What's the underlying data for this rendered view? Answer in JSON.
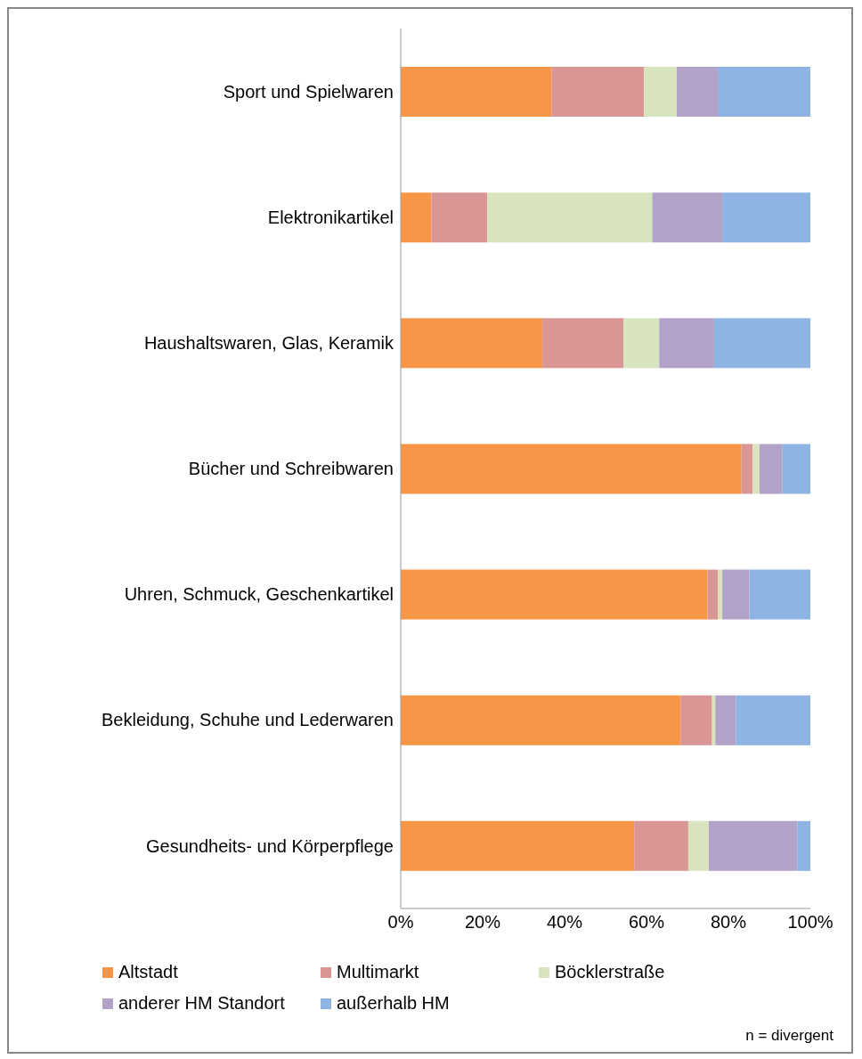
{
  "chart_data": {
    "type": "bar",
    "orientation": "horizontal",
    "stacked": true,
    "categories": [
      "Sport und Spielwaren",
      "Elektronikartikel",
      "Haushaltswaren, Glas, Keramik",
      "Bücher und Schreibwaren",
      "Uhren, Schmuck, Geschenkartikel",
      "Bekleidung, Schuhe und Lederwaren",
      "Gesundheits- und Körperpflege"
    ],
    "series": [
      {
        "name": "Altstadt",
        "color": "#f79646",
        "values": [
          36.8,
          7.5,
          34.6,
          83.2,
          74.9,
          68.3,
          57.0
        ]
      },
      {
        "name": "Multimarkt",
        "color": "#d99694",
        "values": [
          22.6,
          13.6,
          19.8,
          2.7,
          2.5,
          7.7,
          13.2
        ]
      },
      {
        "name": "Böcklerstraße",
        "color": "#d7e4bd",
        "values": [
          8.0,
          40.3,
          8.7,
          1.7,
          1.1,
          0.8,
          5.0
        ]
      },
      {
        "name": "anderer HM Standort",
        "color": "#b3a2c7",
        "values": [
          10.0,
          17.1,
          13.4,
          5.6,
          6.6,
          5.0,
          21.6
        ]
      },
      {
        "name": "außerhalb HM",
        "color": "#8eb4e3",
        "values": [
          22.6,
          21.5,
          23.5,
          6.8,
          14.9,
          18.2,
          3.2
        ]
      }
    ],
    "xlim": [
      0,
      100
    ],
    "xticks": [
      {
        "value": 0,
        "label": "0%"
      },
      {
        "value": 20,
        "label": "20%"
      },
      {
        "value": 40,
        "label": "40%"
      },
      {
        "value": 60,
        "label": "60%"
      },
      {
        "value": 80,
        "label": "80%"
      },
      {
        "value": 100,
        "label": "100%"
      }
    ],
    "grid": false,
    "legend": "bottom",
    "annotations": [
      "n = divergent"
    ]
  }
}
